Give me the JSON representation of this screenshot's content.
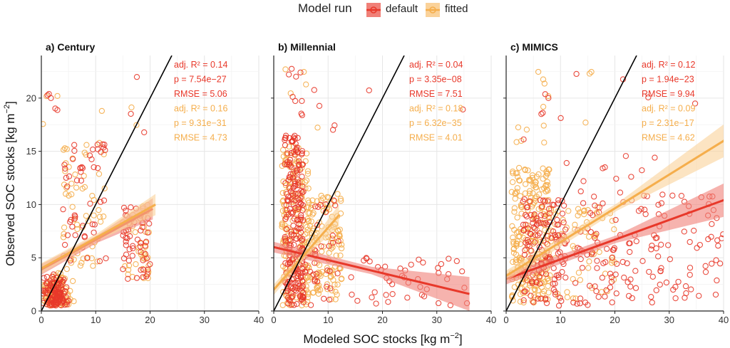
{
  "legend": {
    "title": "Model run",
    "entries": [
      {
        "name": "default",
        "color": "#e8382a"
      },
      {
        "name": "fitted",
        "color": "#f5ae4c"
      }
    ]
  },
  "shared_axes": {
    "xlabel": "Modeled SOC stocks [kg m",
    "ylabel": "Observed SOC stocks [kg m",
    "unit_superscript": "−2",
    "xlabel_suffix": "]",
    "ylabel_suffix": "]"
  },
  "colors": {
    "default": "#e8382a",
    "fitted": "#f5ae4c",
    "default_band": "#f08078",
    "fitted_band": "#fad29a",
    "one_to_one": "#000000",
    "grid": "#e6e6e6"
  },
  "chart_data": [
    {
      "type": "scatter",
      "title": "a) Century",
      "xlim": [
        0,
        40
      ],
      "ylim": [
        0,
        24
      ],
      "xticks": [
        "0",
        "10",
        "20",
        "30",
        "40"
      ],
      "yticks": [
        "0",
        "5",
        "10",
        "15",
        "20"
      ],
      "grid": true,
      "one_to_one_line": true,
      "series": [
        {
          "name": "default",
          "fit": {
            "x": [
              0,
              20.5
            ],
            "y": [
              3.9,
              9.6
            ]
          },
          "stats": [
            "adj. R² = 0.14",
            "p = 7.54e−27",
            "RMSE = 5.06"
          ],
          "cloud": {
            "x_range": [
              0,
              20
            ],
            "y_range": [
              0.3,
              23
            ]
          }
        },
        {
          "name": "fitted",
          "fit": {
            "x": [
              0,
              21
            ],
            "y": [
              4.0,
              10.0
            ]
          },
          "stats": [
            "adj. R² = 0.16",
            "p = 9.31e−31",
            "RMSE = 4.73"
          ],
          "cloud": {
            "x_range": [
              0,
              21
            ],
            "y_range": [
              0.3,
              23
            ]
          }
        }
      ]
    },
    {
      "type": "scatter",
      "title": "b) Millennial",
      "xlim": [
        0,
        40
      ],
      "ylim": [
        0,
        24
      ],
      "xticks": [
        "0",
        "10",
        "20",
        "30",
        "40"
      ],
      "yticks": [
        "0",
        "5",
        "10",
        "15",
        "20"
      ],
      "grid": true,
      "one_to_one_line": true,
      "series": [
        {
          "name": "default",
          "fit": {
            "x": [
              0,
              36
            ],
            "y": [
              6.0,
              1.6
            ]
          },
          "stats": [
            "adj. R² = 0.04",
            "p = 3.35e−08",
            "RMSE = 7.51"
          ],
          "cloud": {
            "x_range": [
              1,
              36
            ],
            "y_range": [
              0.3,
              23
            ]
          }
        },
        {
          "name": "fitted",
          "fit": {
            "x": [
              0,
              12
            ],
            "y": [
              2.0,
              9.0
            ]
          },
          "stats": [
            "adj. R² = 0.18",
            "p = 6.32e−35",
            "RMSE = 4.01"
          ],
          "cloud": {
            "x_range": [
              0,
              12.5
            ],
            "y_range": [
              0.3,
              23
            ]
          }
        }
      ]
    },
    {
      "type": "scatter",
      "title": "c) MIMICS",
      "xlim": [
        0,
        40
      ],
      "ylim": [
        0,
        24
      ],
      "xticks": [
        "0",
        "10",
        "20",
        "30",
        "40"
      ],
      "yticks": [
        "0",
        "5",
        "10",
        "15",
        "20"
      ],
      "grid": true,
      "one_to_one_line": true,
      "series": [
        {
          "name": "default",
          "fit": {
            "x": [
              0,
              40.5
            ],
            "y": [
              3.0,
              10.5
            ]
          },
          "stats": [
            "adj. R² = 0.12",
            "p = 1.94e−23",
            "RMSE = 9.94"
          ],
          "cloud": {
            "x_range": [
              0,
              40.5
            ],
            "y_range": [
              0.3,
              23
            ]
          }
        },
        {
          "name": "fitted",
          "fit": {
            "x": [
              0,
              41
            ],
            "y": [
              3.3,
              16.3
            ]
          },
          "stats": [
            "adj. R² = 0.09",
            "p = 2.31e−17",
            "RMSE = 4.62"
          ],
          "cloud": {
            "x_range": [
              0,
              41
            ],
            "y_range": [
              0.3,
              23
            ]
          }
        }
      ]
    }
  ]
}
